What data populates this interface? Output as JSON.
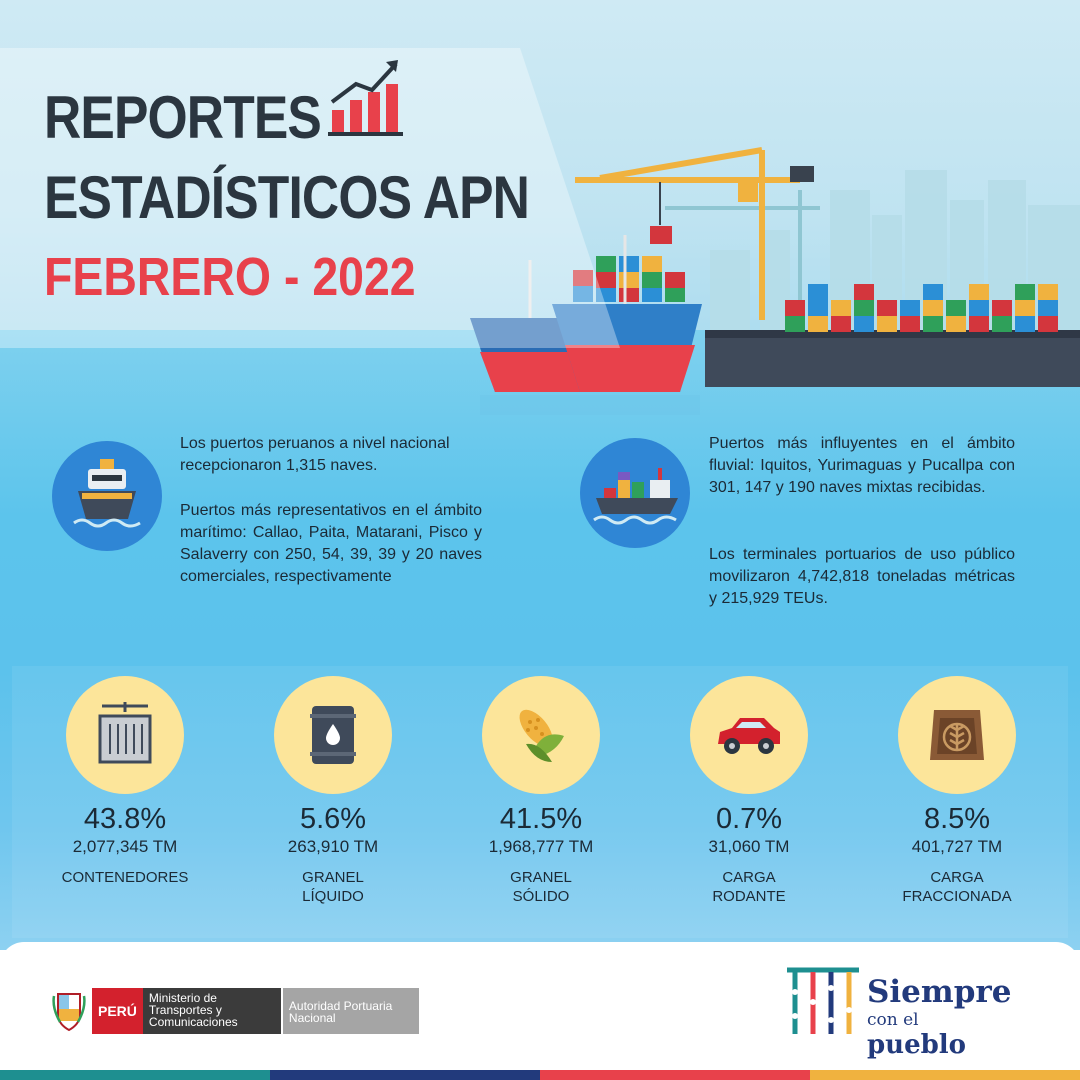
{
  "header": {
    "title_line1": "REPORTES",
    "title_line2": "ESTADÍSTICOS APN",
    "period": "FEBRERO - 2022"
  },
  "info": {
    "left_p1": "Los puertos peruanos a nivel nacional recepcionaron 1,315 naves.",
    "left_p2": "Puertos más representativos en el ámbito marítimo: Callao, Paita, Matarani, Pisco y Salaverry con 250, 54, 39, 39 y 20 naves comerciales, respectivamente",
    "right_p1": "Puertos más influyentes en el ámbito fluvial: Iquitos, Yurimaguas y Pucallpa con 301, 147 y 190 naves mixtas recibidas.",
    "right_p2": "Los terminales portuarios de uso público movilizaron 4,742,818 toneladas métricas y 215,929 TEUs."
  },
  "categories": [
    {
      "icon": "container-icon",
      "percent": "43.8%",
      "tonnage": "2,077,345 TM",
      "name": "CONTENEDORES"
    },
    {
      "icon": "oil-barrel-icon",
      "percent": "5.6%",
      "tonnage": "263,910  TM",
      "name": "GRANEL\nLÍQUIDO"
    },
    {
      "icon": "corn-icon",
      "percent": "41.5%",
      "tonnage": "1,968,777 TM",
      "name": "GRANEL\nSÓLIDO"
    },
    {
      "icon": "car-icon",
      "percent": "0.7%",
      "tonnage": "31,060 TM",
      "name": "CARGA\nRODANTE"
    },
    {
      "icon": "sack-icon",
      "percent": "8.5%",
      "tonnage": "401,727 TM",
      "name": "CARGA\nFRACCIONADA"
    }
  ],
  "footer": {
    "country": "PERÚ",
    "ministry": "Ministerio de Transportes y Comunicaciones",
    "authority": "Autoridad Portuaria Nacional",
    "slogan_top": "Siempre",
    "slogan_small": "con el",
    "slogan_big": "pueblo"
  },
  "colors": {
    "title": "#2b3640",
    "accent_red": "#e8414b",
    "icon_circle_blue": "#2f86d5",
    "icon_circle_yellow": "#fce59a",
    "brand_blue": "#223a7c"
  }
}
